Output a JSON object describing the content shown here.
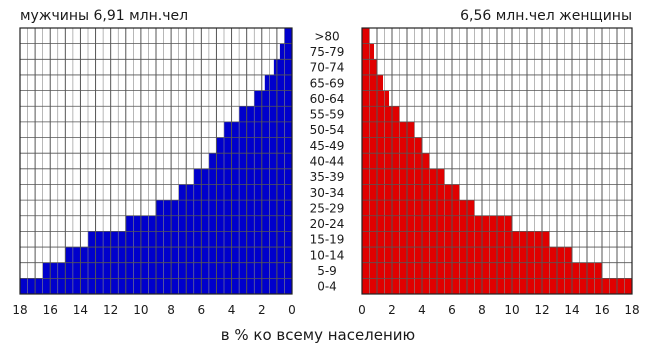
{
  "chart_data": {
    "type": "bar",
    "orientation": "horizontal-population-pyramid",
    "title_left": "мужчины 6,91 млн.чел",
    "title_right": "6,56 млн.чел женщины",
    "xlabel": "в % ко всему населению",
    "unit": "%",
    "xlim": [
      0,
      18
    ],
    "x_ticks": [
      0,
      2,
      4,
      6,
      8,
      10,
      12,
      14,
      16,
      18
    ],
    "grid": true,
    "categories": [
      "0-4",
      "5-9",
      "10-14",
      "15-19",
      "20-24",
      "25-29",
      "30-34",
      "35-39",
      "40-44",
      "45-49",
      "50-54",
      "55-59",
      "60-64",
      "65-69",
      "70-74",
      "75-79",
      ">80"
    ],
    "series": [
      {
        "name": "мужчины",
        "side": "left",
        "color": "#0000cc",
        "values": [
          18,
          16.5,
          15,
          13.5,
          11,
          9,
          7.5,
          6.5,
          5.5,
          5,
          4.5,
          3.5,
          2.5,
          1.8,
          1.2,
          0.8,
          0.5
        ]
      },
      {
        "name": "женщины",
        "side": "right",
        "color": "#e00000",
        "values": [
          18,
          16,
          14,
          12.5,
          10,
          7.5,
          6.5,
          5.5,
          4.5,
          4,
          3.5,
          2.5,
          1.8,
          1.4,
          1,
          0.8,
          0.5
        ]
      }
    ]
  }
}
